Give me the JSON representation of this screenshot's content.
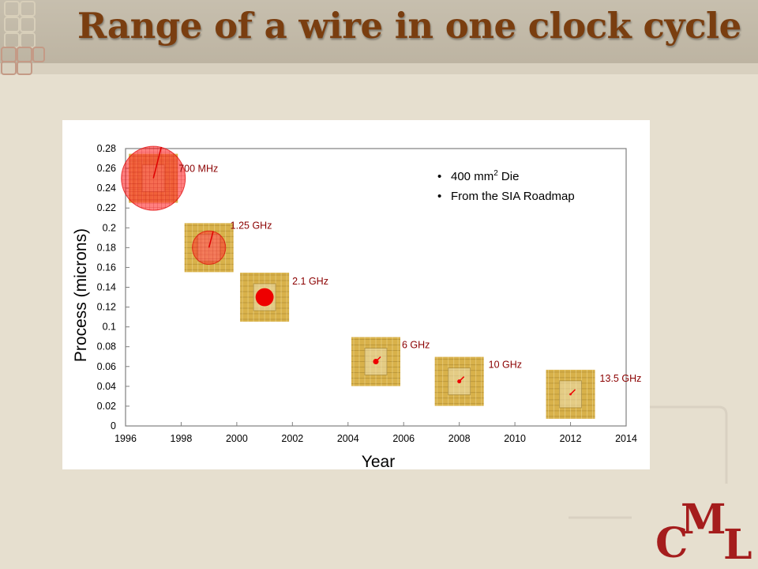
{
  "slide": {
    "title": "Range of a wire in one clock cycle",
    "logo": {
      "c": "C",
      "m": "M",
      "l": "L"
    }
  },
  "chart_data": {
    "type": "scatter",
    "title": "",
    "xlabel": "Year",
    "ylabel": "Process (microns)",
    "xlim": [
      1996,
      2014
    ],
    "ylim": [
      0,
      0.28
    ],
    "xticks": [
      1996,
      1998,
      2000,
      2002,
      2004,
      2006,
      2008,
      2010,
      2012,
      2014
    ],
    "yticks": [
      "0",
      "0.02",
      "0.04",
      "0.06",
      "0.08",
      "0.1",
      "0.12",
      "0.14",
      "0.16",
      "0.18",
      "0.2",
      "0.22",
      "0.24",
      "0.26",
      "0.28"
    ],
    "grid": false,
    "notes": [
      {
        "text": "400 mm",
        "sup": "2",
        "rest": " Die"
      },
      {
        "text": "From the SIA Roadmap",
        "sup": "",
        "rest": ""
      }
    ],
    "points": [
      {
        "year": 1997,
        "process": 0.25,
        "label": "700 MHz",
        "reach_years": 2.3
      },
      {
        "year": 1999,
        "process": 0.18,
        "label": "1.25 GHz",
        "reach_years": 1.2
      },
      {
        "year": 2001,
        "process": 0.13,
        "label": "2.1 GHz",
        "reach_years": 0.65
      },
      {
        "year": 2005,
        "process": 0.065,
        "label": "6 GHz",
        "reach_years": 0.2
      },
      {
        "year": 2008,
        "process": 0.045,
        "label": "10 GHz",
        "reach_years": 0.14
      },
      {
        "year": 2012,
        "process": 0.032,
        "label": "13.5 GHz",
        "reach_years": 0.08
      }
    ],
    "colors": {
      "circle_fill": "#ff3030",
      "circle_stroke": "#e00000",
      "dot": "#ee0000",
      "label": "#8b0000",
      "axis": "#808080",
      "text": "#000000",
      "die_gold": "#d8b14a",
      "die_dark": "#8a6a1c"
    }
  }
}
